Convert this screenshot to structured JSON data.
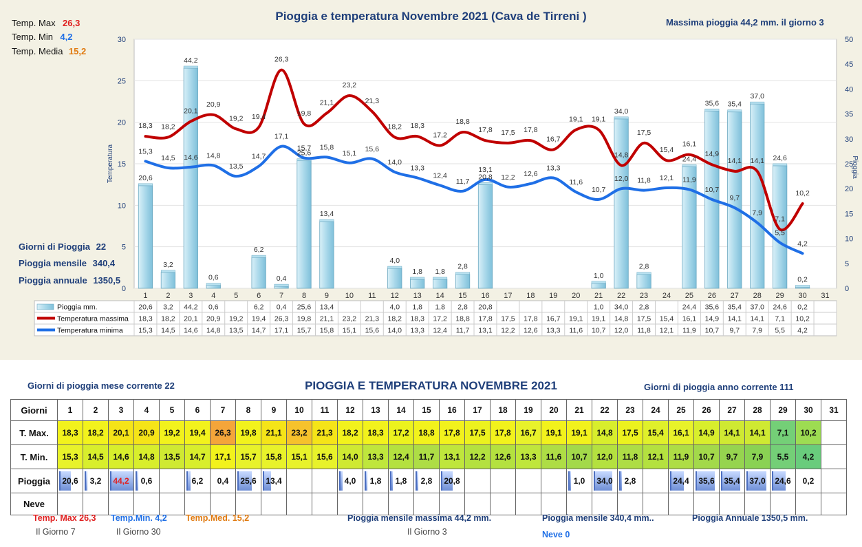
{
  "chart": {
    "title": "Pioggia e temperatura Novembre 2021 (Cava de Tirreni )",
    "max_rain_text": "Massima pioggia  44,2 mm. il giorno  3",
    "stats": {
      "tmax_label": "Temp. Max",
      "tmax_value": "26,3",
      "tmin_label": "Temp. Min",
      "tmin_value": "4,2",
      "tmed_label": "Temp. Media",
      "tmed_value": "15,2"
    },
    "rain_stats": {
      "giorni_label": "Giorni di Pioggia",
      "giorni_value": "22",
      "mensile_label": "Pioggia mensile",
      "mensile_value": "340,4",
      "annuale_label": "Pioggia annuale",
      "annuale_value": "1350,5"
    },
    "legend": {
      "pioggia": "Pioggia mm.",
      "tmax": "Temperatura massima",
      "tmin": "Temperatura minima"
    },
    "colors": {
      "rain": "#a9d8ea",
      "tmax": "#c00000",
      "tmin": "#1f6fe6",
      "title": "#1f3f7a"
    }
  },
  "chart_data": {
    "type": "bar",
    "title": "Pioggia e temperatura Novembre 2021 (Cava de Tirreni )",
    "ylabel_left": "Temperatura",
    "ylabel_right": "Pioggia",
    "ylim_left": [
      0,
      30
    ],
    "ylim_right": [
      0,
      50
    ],
    "yticks_left": [
      "0",
      "5",
      "10",
      "15",
      "20",
      "25",
      "30"
    ],
    "yticks_right": [
      "0",
      "5",
      "10",
      "15",
      "20",
      "25",
      "30",
      "35",
      "40",
      "45",
      "50"
    ],
    "categories": [
      "1",
      "2",
      "3",
      "4",
      "5",
      "6",
      "7",
      "8",
      "9",
      "10",
      "11",
      "12",
      "13",
      "14",
      "15",
      "16",
      "17",
      "18",
      "19",
      "20",
      "21",
      "22",
      "23",
      "24",
      "25",
      "26",
      "27",
      "28",
      "29",
      "30",
      "31"
    ],
    "series": [
      {
        "name": "Pioggia mm.",
        "type": "bar",
        "axis": "right",
        "values": [
          20.6,
          3.2,
          44.2,
          0.6,
          null,
          6.2,
          0.4,
          25.6,
          13.4,
          null,
          null,
          4.0,
          1.8,
          1.8,
          2.8,
          20.8,
          null,
          null,
          null,
          null,
          1.0,
          34.0,
          2.8,
          null,
          24.4,
          35.6,
          35.4,
          37.0,
          24.6,
          0.2,
          null
        ],
        "labels": [
          "20,6",
          "3,2",
          "44,2",
          "0,6",
          "",
          "6,2",
          "0,4",
          "25,6",
          "13,4",
          "",
          "",
          "4,0",
          "1,8",
          "1,8",
          "2,8",
          "20,8",
          "",
          "",
          "",
          "",
          "1,0",
          "34,0",
          "2,8",
          "",
          "24,4",
          "35,6",
          "35,4",
          "37,0",
          "24,6",
          "0,2",
          ""
        ]
      },
      {
        "name": "Temperatura massima",
        "type": "line",
        "axis": "left",
        "values": [
          18.3,
          18.2,
          20.1,
          20.9,
          19.2,
          19.4,
          26.3,
          19.8,
          21.1,
          23.2,
          21.3,
          18.2,
          18.3,
          17.2,
          18.8,
          17.8,
          17.5,
          17.8,
          16.7,
          19.1,
          19.1,
          14.8,
          17.5,
          15.4,
          16.1,
          14.9,
          14.1,
          14.1,
          7.1,
          10.2,
          null
        ],
        "labels": [
          "18,3",
          "18,2",
          "20,1",
          "20,9",
          "19,2",
          "19,4",
          "26,3",
          "19,8",
          "21,1",
          "23,2",
          "21,3",
          "18,2",
          "18,3",
          "17,2",
          "18,8",
          "17,8",
          "17,5",
          "17,8",
          "16,7",
          "19,1",
          "19,1",
          "14,8",
          "17,5",
          "15,4",
          "16,1",
          "14,9",
          "14,1",
          "14,1",
          "7,1",
          "10,2",
          ""
        ]
      },
      {
        "name": "Temperatura minima",
        "type": "line",
        "axis": "left",
        "values": [
          15.3,
          14.5,
          14.6,
          14.8,
          13.5,
          14.7,
          17.1,
          15.7,
          15.8,
          15.1,
          15.6,
          14.0,
          13.3,
          12.4,
          11.7,
          13.1,
          12.2,
          12.6,
          13.3,
          11.6,
          10.7,
          12.0,
          11.8,
          12.1,
          11.9,
          10.7,
          9.7,
          7.9,
          5.5,
          4.2,
          null
        ],
        "labels": [
          "15,3",
          "14,5",
          "14,6",
          "14,8",
          "13,5",
          "14,7",
          "17,1",
          "15,7",
          "15,8",
          "15,1",
          "15,6",
          "14,0",
          "13,3",
          "12,4",
          "11,7",
          "13,1",
          "12,2",
          "12,6",
          "13,3",
          "11,6",
          "10,7",
          "12,0",
          "11,8",
          "12,1",
          "11,9",
          "10,7",
          "9,7",
          "7,9",
          "5,5",
          "4,2",
          ""
        ]
      }
    ],
    "grid": true,
    "legend_placement": "data-table-below"
  },
  "table": {
    "title": "PIOGGIA E TEMPERATURA NOVEMBRE 2021",
    "left_info": "Giorni di pioggia mese corrente   22",
    "right_info": "Giorni di pioggia anno corrente  111",
    "row_labels": [
      "Giorni",
      "T. Max.",
      "T. Min.",
      "Pioggia",
      "Neve"
    ],
    "tmax_colors": [
      "#f2f21c",
      "#f2f21c",
      "#f5e418",
      "#f5e418",
      "#f2f21c",
      "#f2f21c",
      "#f4a53a",
      "#f2f21c",
      "#f5e418",
      "#f6c22c",
      "#f5e418",
      "#f2f21c",
      "#f2f21c",
      "#ecf21e",
      "#f2f21c",
      "#f2f21c",
      "#ecf21e",
      "#f2f21c",
      "#e8f22a",
      "#f2f21c",
      "#f2f21c",
      "#d8ee2c",
      "#ecf21e",
      "#e0f02a",
      "#e8f22a",
      "#d8ee2c",
      "#cfe932",
      "#cfe932",
      "#74cf77",
      "#9ddc52",
      "#ffffff"
    ],
    "tmin_colors": [
      "#e8f22a",
      "#d8ee2c",
      "#d8ee2c",
      "#d8ee2c",
      "#cfe932",
      "#d8ee2c",
      "#f2f21c",
      "#e8f22a",
      "#e8f22a",
      "#e8f22a",
      "#e8f22a",
      "#cfe932",
      "#bfe63c",
      "#b4e13f",
      "#aedd45",
      "#bfe63c",
      "#b4e13f",
      "#b4e13f",
      "#bfe63c",
      "#aedd45",
      "#a3d94a",
      "#b4e13f",
      "#aedd45",
      "#b4e13f",
      "#aedd45",
      "#a3d94a",
      "#96d44f",
      "#8ad253",
      "#74cf77",
      "#69cc7c",
      "#ffffff"
    ]
  },
  "footer": {
    "tmax_text": "Temp. Max 26,3",
    "tmax_day": "Il Giorno   7",
    "tmin_text": "Temp.Min.  4,2",
    "tmin_day": "Il Giorno 30",
    "tmed_text": "Temp.Med. 15,2",
    "max_rain_text": "Pioggia mensile massima 44,2   mm.",
    "max_rain_day": "Il Giorno  3",
    "monthly_text": "Pioggia mensile  340,4 mm..",
    "snow_text": "Neve 0",
    "annual_text": "Pioggia Annuale  1350,5 mm."
  }
}
